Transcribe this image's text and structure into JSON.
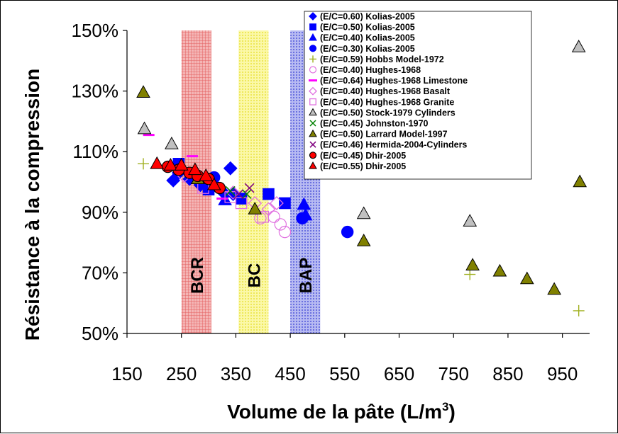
{
  "chart_data": {
    "type": "scatter",
    "xlabel": "Volume de la pâte (L/m",
    "xlabel_sup": "3",
    "xlabel_end": ")",
    "ylabel": "Résistance à la compression",
    "xlim": [
      150,
      1000
    ],
    "ylim": [
      50,
      150
    ],
    "xticks": [
      "150",
      "250",
      "350",
      "450",
      "550",
      "650",
      "750",
      "850",
      "950"
    ],
    "yticks": [
      "50%",
      "70%",
      "90%",
      "110%",
      "130%",
      "150%"
    ],
    "grid": false,
    "legend_position": "top-right",
    "bands": [
      {
        "label": "BCR",
        "x0": 250,
        "x1": 305,
        "color": "#f08a8a",
        "pattern": "grid"
      },
      {
        "label": "BC",
        "x0": 355,
        "x1": 410,
        "color": "#f7f27a",
        "pattern": "dots"
      },
      {
        "label": "BAP",
        "x0": 450,
        "x1": 505,
        "color": "#7d83e8",
        "pattern": "dots"
      }
    ],
    "series": [
      {
        "name": "(E/C=0.60) Kolias-2005",
        "marker": "diamond",
        "color": "#0000ff",
        "fill": "#0000ff",
        "points": [
          [
            235,
            100.5
          ],
          [
            245,
            103
          ],
          [
            265,
            101
          ],
          [
            285,
            99
          ],
          [
            310,
            99
          ],
          [
            330,
            96
          ],
          [
            340,
            104.5
          ],
          [
            345,
            96
          ]
        ]
      },
      {
        "name": "(E/C=0.50) Kolias-2005",
        "marker": "square",
        "color": "#0000ff",
        "fill": "#0000ff",
        "points": [
          [
            245,
            106
          ],
          [
            300,
            97.5
          ],
          [
            360,
            94.5
          ],
          [
            410,
            96
          ],
          [
            440,
            93
          ]
        ]
      },
      {
        "name": "(E/C=0.40) Kolias-2005",
        "marker": "triangle",
        "color": "#0000ff",
        "fill": "#0000ff",
        "points": [
          [
            290,
            100.5
          ],
          [
            330,
            94
          ],
          [
            475,
            92.5
          ],
          [
            478,
            89
          ]
        ]
      },
      {
        "name": "(E/C=0.30) Kolias-2005",
        "marker": "circle",
        "color": "#0000ff",
        "fill": "#0000ff",
        "points": [
          [
            310,
            101.5
          ],
          [
            472,
            88
          ],
          [
            555,
            83.5
          ]
        ]
      },
      {
        "name": "(E/C=0.59) Hobbs Model-1972",
        "marker": "plus",
        "color": "#a0b020",
        "fill": "none",
        "points": [
          [
            180,
            106
          ],
          [
            780,
            69.5
          ],
          [
            980,
            57.5
          ]
        ]
      },
      {
        "name": "(E/C=0.40) Hughes-1968",
        "marker": "circle",
        "color": "#e070e0",
        "fill": "none",
        "points": [
          [
            395,
            88
          ],
          [
            420,
            88.5
          ],
          [
            432,
            86
          ],
          [
            440,
            83.5
          ]
        ]
      },
      {
        "name": "(E/C=0.64) Hughes-1968 Limestone",
        "marker": "dash",
        "color": "#ff00ff",
        "fill": "none",
        "points": [
          [
            190,
            115.5
          ],
          [
            270,
            108.5
          ],
          [
            325,
            94.5
          ]
        ]
      },
      {
        "name": "(E/C=0.40) Hughes-1968 Basalt",
        "marker": "diamond",
        "color": "#e070e0",
        "fill": "none",
        "points": [
          [
            255,
            102
          ],
          [
            345,
            96.5
          ],
          [
            385,
            93
          ],
          [
            410,
            91
          ],
          [
            425,
            93
          ]
        ]
      },
      {
        "name": "(E/C=0.40) Hughes-1968 Granite",
        "marker": "square",
        "color": "#e070e0",
        "fill": "none",
        "points": [
          [
            290,
            98
          ],
          [
            340,
            95
          ],
          [
            360,
            93
          ],
          [
            400,
            88.5
          ]
        ]
      },
      {
        "name": "(E/C=0.50) Stock-1979 Cylinders",
        "marker": "triangle",
        "color": "#000000",
        "fill": "#c0c0c0",
        "points": [
          [
            182,
            117.5
          ],
          [
            232,
            112.5
          ],
          [
            585,
            89.5
          ],
          [
            780,
            87
          ],
          [
            980,
            144.5
          ]
        ]
      },
      {
        "name": "(E/C=0.45) Johnston-1970",
        "marker": "x",
        "color": "#008000",
        "fill": "none",
        "points": [
          [
            340,
            97
          ],
          [
            370,
            96
          ]
        ]
      },
      {
        "name": "(E/C=0.50) Larrard Model-1997",
        "marker": "triangle",
        "color": "#000000",
        "fill": "#808000",
        "points": [
          [
            180,
            129.5
          ],
          [
            280,
            101
          ],
          [
            385,
            91
          ],
          [
            585,
            80.5
          ],
          [
            785,
            72.5
          ],
          [
            835,
            70.5
          ],
          [
            885,
            68
          ],
          [
            935,
            64.5
          ],
          [
            982,
            100
          ]
        ]
      },
      {
        "name": "(E/C=0.46) Hermida-2004-Cylinders",
        "marker": "x",
        "color": "#800080",
        "fill": "none",
        "points": [
          [
            355,
            96
          ],
          [
            375,
            98
          ]
        ]
      },
      {
        "name": "(E/C=0.45) Dhir-2005",
        "marker": "circle",
        "color": "#000000",
        "fill": "#ff0000",
        "points": [
          [
            225,
            105
          ],
          [
            245,
            104
          ],
          [
            265,
            103
          ],
          [
            280,
            102
          ],
          [
            300,
            101
          ],
          [
            320,
            98
          ]
        ]
      },
      {
        "name": "(E/C=0.55) Dhir-2005",
        "marker": "triangle",
        "color": "#000000",
        "fill": "#ff0000",
        "points": [
          [
            205,
            106
          ],
          [
            230,
            105.5
          ],
          [
            250,
            105.5
          ],
          [
            275,
            104
          ],
          [
            295,
            102
          ],
          [
            310,
            99
          ]
        ]
      }
    ]
  }
}
